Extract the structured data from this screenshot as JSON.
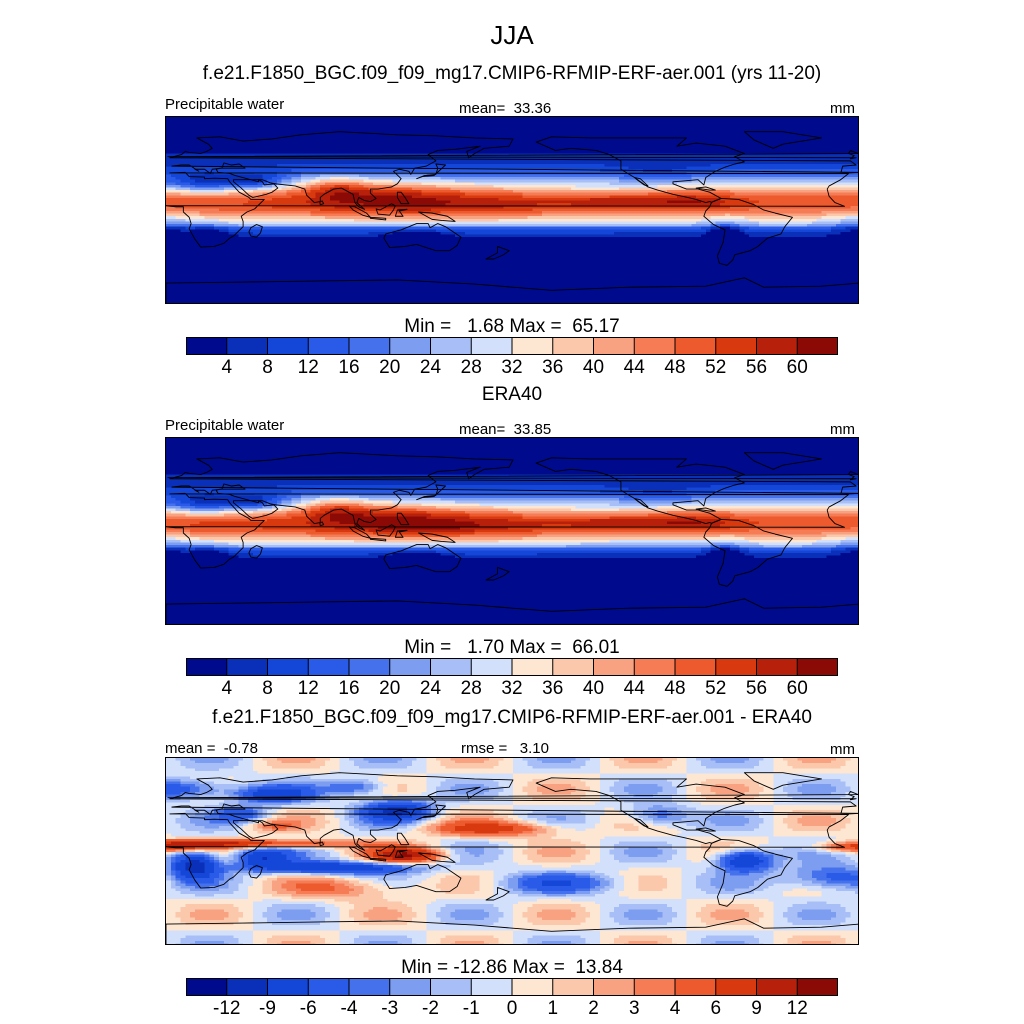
{
  "figure": {
    "title": "JJA",
    "case_title": "f.e21.F1850_BGC.f09_f09_mg17.CMIP6-RFMIP-ERF-aer.001 (yrs 11-20)",
    "diff_title": "f.e21.F1850_BGC.f09_f09_mg17.CMIP6-RFMIP-ERF-aer.001 - ERA40"
  },
  "colors": {
    "field_palette": [
      "#000a8c",
      "#0a2fb8",
      "#1446d8",
      "#2a5ae8",
      "#4572ec",
      "#7d9df0",
      "#a7bff6",
      "#d2e0fb",
      "#fde6d2",
      "#fbc8ac",
      "#f8a282",
      "#f57c55",
      "#ec5a2e",
      "#d8390f",
      "#b7200a",
      "#8c0a06"
    ],
    "diff_palette": [
      "#000a8c",
      "#0a2fb8",
      "#1446d8",
      "#2a5ae8",
      "#4572ec",
      "#7d9df0",
      "#a7bff6",
      "#d2e0fb",
      "#fde6d2",
      "#fbc8ac",
      "#f8a282",
      "#f57c55",
      "#ec5a2e",
      "#d8390f",
      "#b7200a",
      "#8c0a06"
    ]
  },
  "chart_data": [
    {
      "type": "heatmap",
      "id": "model",
      "variable": "Precipitable water",
      "mean_label": "mean=",
      "mean": "33.36",
      "units": "mm",
      "min_label": "Min =",
      "min": "1.68",
      "max_label": "Max =",
      "max": "65.17",
      "levels": [
        "4",
        "8",
        "12",
        "16",
        "20",
        "24",
        "28",
        "32",
        "36",
        "40",
        "44",
        "48",
        "52",
        "56",
        "60"
      ],
      "domain": "global map, lon 0-360, lat 90S-90N"
    },
    {
      "type": "heatmap",
      "id": "obs",
      "title": "ERA40",
      "variable": "Precipitable water",
      "mean_label": "mean=",
      "mean": "33.85",
      "units": "mm",
      "min_label": "Min =",
      "min": "1.70",
      "max_label": "Max =",
      "max": "66.01",
      "levels": [
        "4",
        "8",
        "12",
        "16",
        "20",
        "24",
        "28",
        "32",
        "36",
        "40",
        "44",
        "48",
        "52",
        "56",
        "60"
      ],
      "domain": "global map, lon 0-360, lat 90S-90N"
    },
    {
      "type": "heatmap",
      "id": "diff",
      "mean_label": "mean =",
      "mean": "-0.78",
      "rmse_label": "rmse =",
      "rmse": "3.10",
      "units": "mm",
      "min_label": "Min =",
      "min": "-12.86",
      "max_label": "Max =",
      "max": "13.84",
      "levels": [
        "-12",
        "-9",
        "-6",
        "-4",
        "-3",
        "-2",
        "-1",
        "0",
        "1",
        "2",
        "3",
        "4",
        "6",
        "9",
        "12"
      ],
      "domain": "global map, lon 0-360, lat 90S-90N"
    }
  ]
}
